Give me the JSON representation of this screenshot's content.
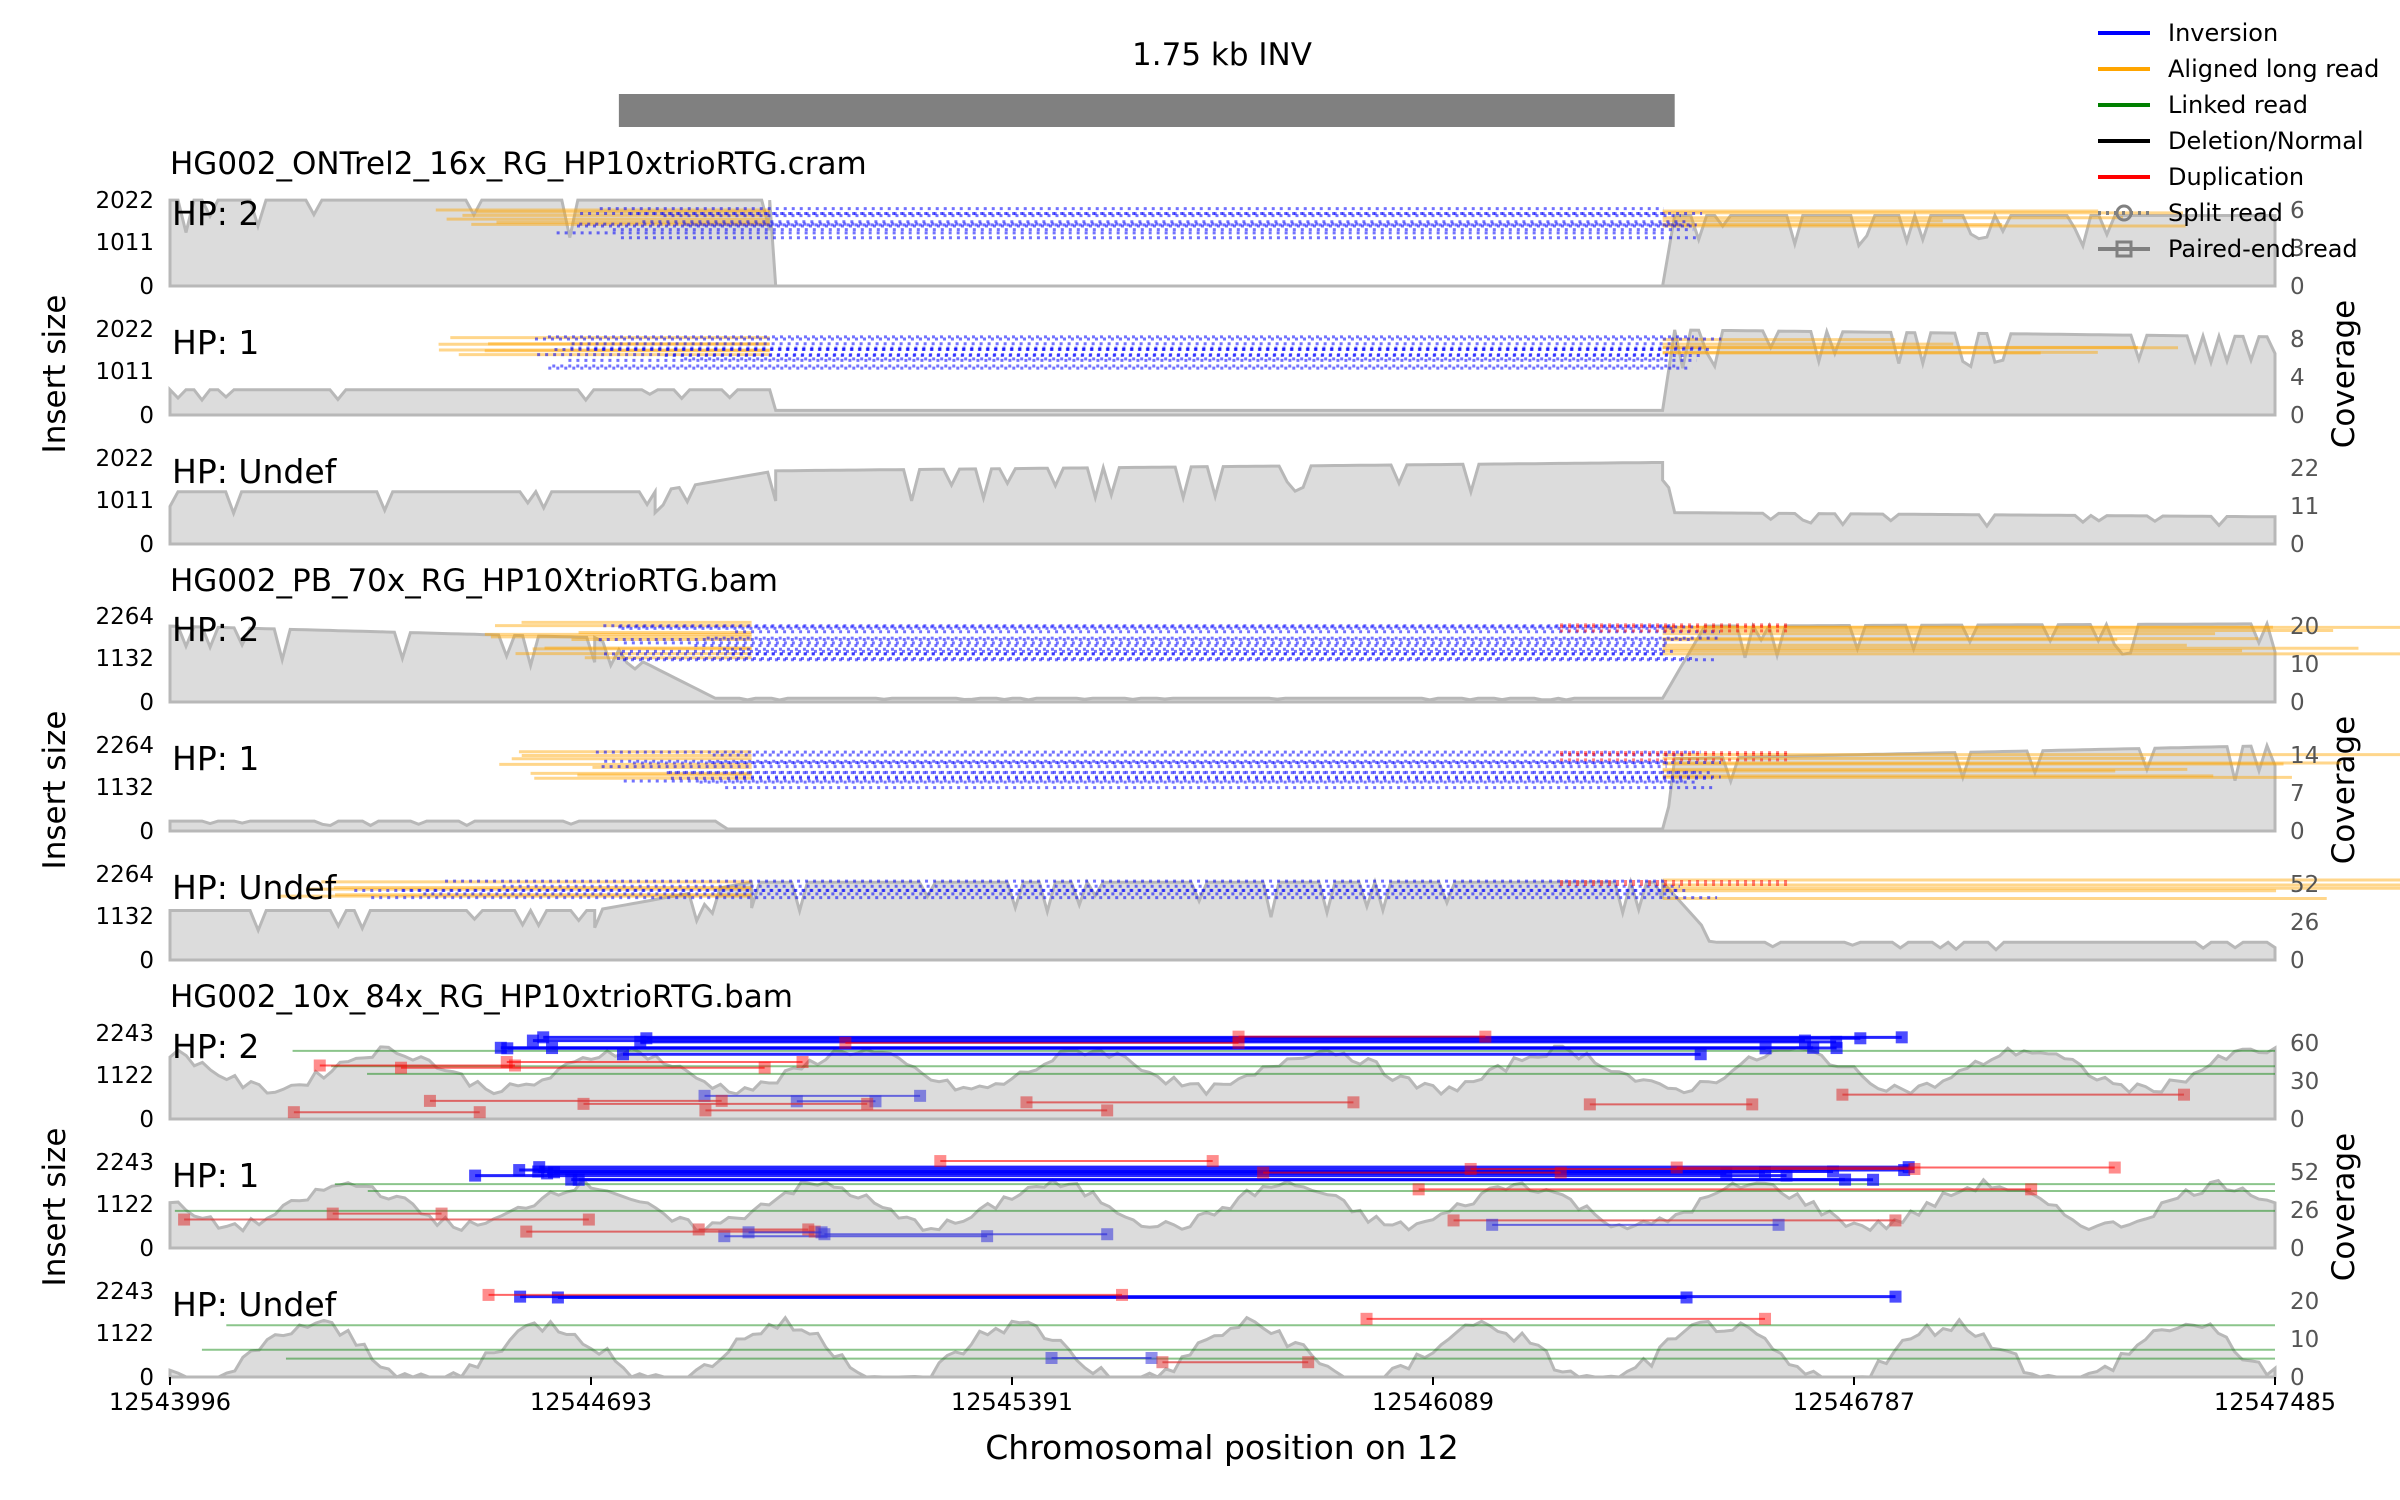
{
  "chart_data": {
    "type": "area",
    "title": "1.75 kb INV",
    "sv_interval": [
      12544740,
      12546490
    ],
    "xlabel": "Chromosomal position on 12",
    "xlim": [
      12543996,
      12547485
    ],
    "xticks": [
      "12543996",
      "12544693",
      "12545391",
      "12546089",
      "12546787",
      "12547485"
    ],
    "legend": {
      "placement": "top-right",
      "entries": [
        {
          "label": "Inversion",
          "color": "#0000ff",
          "style": "line"
        },
        {
          "label": "Aligned long read",
          "color": "#ffa500",
          "style": "line"
        },
        {
          "label": "Linked read",
          "color": "#008000",
          "style": "line"
        },
        {
          "label": "Deletion/Normal",
          "color": "#000000",
          "style": "line"
        },
        {
          "label": "Duplication",
          "color": "#ff0000",
          "style": "line"
        },
        {
          "label": "Split read",
          "color": "#808080",
          "style": "dotted-circle"
        },
        {
          "label": "Paired-end read",
          "color": "#808080",
          "style": "solid-square"
        }
      ]
    },
    "groups": [
      {
        "file": "HG002_ONTrel2_16x_RG_HP10xtrioRTG.cram",
        "read_type": "long",
        "ylabel": "Insert size",
        "y2label": "Coverage",
        "panels": [
          {
            "hp": "HP: 2",
            "yticks": [
              "2022",
              "1011",
              "0"
            ],
            "y2ticks": [
              "6",
              "3",
              "0"
            ],
            "cov_max": 6,
            "coverage_segments": [
              [
                12543996,
                5.6
              ],
              [
                12544990,
                5.6
              ],
              [
                12545000,
                0
              ],
              [
                12546470,
                0
              ],
              [
                12546490,
                4.6
              ],
              [
                12547485,
                4.6
              ]
            ],
            "reads": {
              "inv": 11,
              "aligned": 6,
              "spanL": [
                12544630,
                12544990
              ],
              "spanR": [
                12546470,
                12546900
              ]
            }
          },
          {
            "hp": "HP: 1",
            "yticks": [
              "2022",
              "1011",
              "0"
            ],
            "y2ticks": [
              "8",
              "4",
              "0"
            ],
            "cov_max": 8,
            "coverage_segments": [
              [
                12543996,
                2.2
              ],
              [
                12544990,
                2.2
              ],
              [
                12545000,
                0.4
              ],
              [
                12546470,
                0.4
              ],
              [
                12546490,
                7.4
              ],
              [
                12547485,
                6.8
              ]
            ],
            "reads": {
              "inv": 12,
              "aligned": 6,
              "spanL": [
                12544600,
                12544990
              ],
              "spanR": [
                12546470,
                12546800
              ]
            }
          },
          {
            "hp": "HP: Undef",
            "yticks": [
              "2022",
              "1011",
              "0"
            ],
            "y2ticks": [
              "22",
              "11",
              "0"
            ],
            "cov_max": 22,
            "coverage_segments": [
              [
                12543996,
                12.5
              ],
              [
                12544800,
                12.5
              ],
              [
                12545000,
                17.5
              ],
              [
                12546470,
                19.5
              ],
              [
                12546490,
                7.5
              ],
              [
                12547485,
                6.5
              ]
            ],
            "reads": {
              "inv": 0,
              "aligned": 0
            }
          }
        ]
      },
      {
        "file": "HG002_PB_70x_RG_HP10XtrioRTG.bam",
        "read_type": "long",
        "ylabel": "Insert size",
        "y2label": "Coverage",
        "panels": [
          {
            "hp": "HP: 2",
            "yticks": [
              "2264",
              "1132",
              "0"
            ],
            "y2ticks": [
              "20",
              "10",
              "0"
            ],
            "cov_max": 20,
            "coverage_segments": [
              [
                12543996,
                16.5
              ],
              [
                12544700,
                14
              ],
              [
                12544900,
                0.8
              ],
              [
                12546470,
                0.8
              ],
              [
                12546540,
                16.5
              ],
              [
                12547485,
                17
              ]
            ],
            "reads": {
              "inv": 14,
              "aligned": 10,
              "spanL": [
                12544700,
                12544960
              ],
              "spanR": [
                12546470,
                12547200
              ],
              "dup": 3
            }
          },
          {
            "hp": "HP: 1",
            "yticks": [
              "2264",
              "1132",
              "0"
            ],
            "y2ticks": [
              "14",
              "7",
              "0"
            ],
            "cov_max": 14,
            "coverage_segments": [
              [
                12543996,
                1.5
              ],
              [
                12544900,
                1.5
              ],
              [
                12544920,
                0.3
              ],
              [
                12546470,
                0.3
              ],
              [
                12546490,
                11
              ],
              [
                12547485,
                13
              ]
            ],
            "reads": {
              "inv": 13,
              "aligned": 8,
              "spanL": [
                12544700,
                12544960
              ],
              "spanR": [
                12546470,
                12547200
              ],
              "dup": 3
            }
          },
          {
            "hp": "HP: Undef",
            "yticks": [
              "2264",
              "1132",
              "0"
            ],
            "y2ticks": [
              "52",
              "26",
              "0"
            ],
            "cov_max": 52,
            "coverage_segments": [
              [
                12543996,
                28
              ],
              [
                12544700,
                28
              ],
              [
                12544960,
                44
              ],
              [
                12546470,
                44
              ],
              [
                12546560,
                10
              ],
              [
                12547485,
                10
              ]
            ],
            "reads": {
              "inv": 6,
              "aligned": 5,
              "spanL": [
                12544300,
                12544960
              ],
              "spanR": [
                12546470,
                12547485
              ],
              "dup": 2
            }
          }
        ]
      },
      {
        "file": "HG002_10x_84x_RG_HP10xtrioRTG.bam",
        "read_type": "linked",
        "ylabel": "Insert size",
        "y2label": "Coverage",
        "panels": [
          {
            "hp": "HP: 2",
            "yticks": [
              "2243",
              "1122",
              "0"
            ],
            "y2ticks": [
              "60",
              "30",
              "0"
            ],
            "cov_max": 60,
            "coverage_base": 32,
            "coverage_amp": 14,
            "reads": {
              "inv": 8,
              "pe_low": 9,
              "dup": 5
            }
          },
          {
            "hp": "HP: 1",
            "yticks": [
              "2243",
              "1122",
              "0"
            ],
            "y2ticks": [
              "52",
              "26",
              "0"
            ],
            "cov_max": 52,
            "coverage_base": 24,
            "coverage_amp": 13,
            "reads": {
              "inv": 8,
              "pe_low": 9,
              "dup": 5
            }
          },
          {
            "hp": "HP: Undef",
            "yticks": [
              "2243",
              "1122",
              "0"
            ],
            "y2ticks": [
              "20",
              "10",
              "0"
            ],
            "cov_max": 20,
            "coverage_base": 5,
            "coverage_amp": 7,
            "reads": {
              "inv": 2,
              "pe_low": 2,
              "dup": 2
            }
          }
        ]
      }
    ]
  }
}
